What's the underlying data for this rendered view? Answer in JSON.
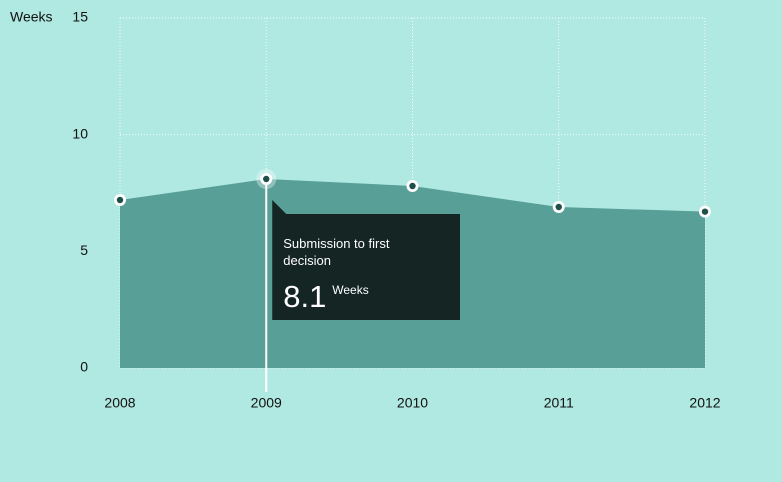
{
  "chart_data": {
    "type": "area",
    "ylabel": "Weeks",
    "categories": [
      "2008",
      "2009",
      "2010",
      "2011",
      "2012"
    ],
    "series": [
      {
        "name": "Submission to first decision",
        "color": "#579f97",
        "values": [
          7.2,
          8.1,
          7.8,
          6.9,
          6.7
        ]
      }
    ],
    "ylim": [
      0,
      15
    ],
    "yticks": [
      0,
      5,
      10,
      15
    ],
    "grid": true,
    "highlight_index": 1
  }
}
